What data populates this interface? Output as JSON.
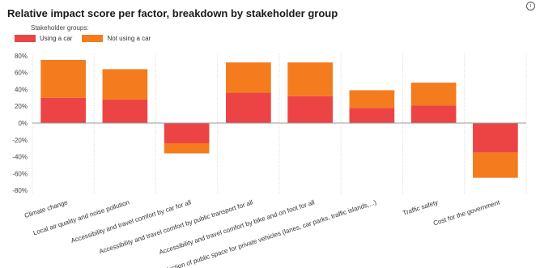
{
  "title": "Relative impact score per factor, breakdown by stakeholder group",
  "info_icon": "info-icon",
  "legend": {
    "title": "Stakeholder groups:",
    "items": [
      {
        "label": "Using a car",
        "color": "#ec4444"
      },
      {
        "label": "Not using a car",
        "color": "#f47b1e"
      }
    ]
  },
  "chart_data": {
    "type": "bar",
    "stacked": true,
    "title": "Relative impact score per factor, breakdown by stakeholder group",
    "categories": [
      "Climate change",
      "Local air quality and noise pollution",
      "Accessibility and travel comfort by car for all",
      "Accessibility and travel comfort by public transport for all",
      "Accessibility and travel comfort by bike and on foot for all",
      "Reduction of public space for private vehicles (lanes, car parks, traffic islands,...)",
      "Traffic safety",
      "Cost for the government"
    ],
    "series": [
      {
        "name": "Using a car",
        "color": "#ec4444",
        "values": [
          30,
          28,
          -24,
          36,
          32,
          18,
          21,
          -35
        ]
      },
      {
        "name": "Not using a car",
        "color": "#f47b1e",
        "values": [
          45,
          36,
          -12,
          36,
          40,
          21,
          27,
          -30
        ]
      }
    ],
    "yticks": [
      "80%",
      "60%",
      "40%",
      "20%",
      "0%",
      "-20%",
      "-40%",
      "-60%",
      "-80%"
    ],
    "ytick_values": [
      80,
      60,
      40,
      20,
      0,
      -20,
      -40,
      -60,
      -80
    ],
    "ylim": [
      -85,
      85
    ],
    "grid": "vertical-dotted",
    "legend_position": "top-left"
  }
}
